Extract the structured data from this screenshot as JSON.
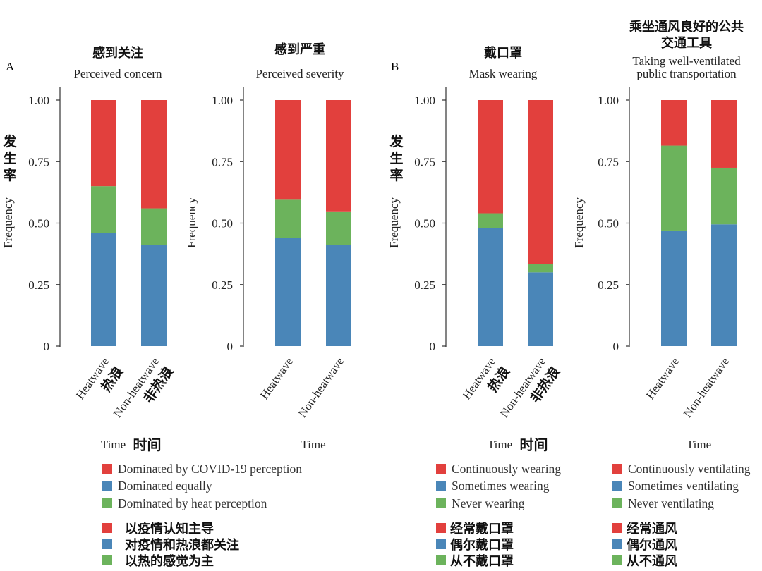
{
  "panel_letters": [
    "A",
    "B"
  ],
  "legends": {
    "A": {
      "en": [
        "Dominated by COVID-19 perception",
        "Dominated equally",
        "Dominated by heat perception"
      ],
      "zh": [
        "以疫情认知主导",
        "对疫情和热浪都关注",
        "以热的感觉为主"
      ]
    },
    "B": {
      "en": [
        "Continuously wearing",
        "Sometimes wearing",
        "Never wearing"
      ],
      "zh": [
        "经常戴口罩",
        "偶尔戴口罩",
        "从不戴口罩"
      ]
    },
    "C": {
      "en": [
        "Continuously ventilating",
        "Sometimes ventilating",
        "Never ventilating"
      ],
      "zh": [
        "经常通风",
        "偶尔通风",
        "从不通风"
      ]
    }
  },
  "chart_data": [
    {
      "type": "bar",
      "stacked": true,
      "title_zh": "感到关注",
      "title": "Perceived concern",
      "categories": [
        "Heatwave",
        "Non-heatwave"
      ],
      "categories_zh": [
        "热浪",
        "非热浪"
      ],
      "xlabel": "Time",
      "xlabel_zh": "时间",
      "ylabel": "Frequency",
      "ylabel_zh": "发生率",
      "ylim": [
        0,
        1
      ],
      "yticks": [
        "0",
        "0.25",
        "0.50",
        "0.75",
        "1.00"
      ],
      "series": [
        {
          "name": "Dominated equally",
          "color": "#4a86b8",
          "values": [
            0.46,
            0.41
          ]
        },
        {
          "name": "Dominated by heat perception",
          "color": "#6cb35c",
          "values": [
            0.19,
            0.15
          ]
        },
        {
          "name": "Dominated by COVID-19 perception",
          "color": "#e2403d",
          "values": [
            0.35,
            0.44
          ]
        }
      ]
    },
    {
      "type": "bar",
      "stacked": true,
      "title_zh": "感到严重",
      "title": "Perceived severity",
      "categories": [
        "Heatwave",
        "Non-heatwave"
      ],
      "categories_zh": [],
      "xlabel": "Time",
      "xlabel_zh": "",
      "ylabel": "Frequency",
      "ylabel_zh": "",
      "ylim": [
        0,
        1
      ],
      "yticks": [
        "0",
        "0.25",
        "0.50",
        "0.75",
        "1.00"
      ],
      "series": [
        {
          "name": "Dominated equally",
          "color": "#4a86b8",
          "values": [
            0.44,
            0.41
          ]
        },
        {
          "name": "Dominated by heat perception",
          "color": "#6cb35c",
          "values": [
            0.155,
            0.135
          ]
        },
        {
          "name": "Dominated by COVID-19 perception",
          "color": "#e2403d",
          "values": [
            0.405,
            0.455
          ]
        }
      ]
    },
    {
      "type": "bar",
      "stacked": true,
      "title_zh": "戴口罩",
      "title": "Mask wearing",
      "categories": [
        "Heatwave",
        "Non-heatwave"
      ],
      "categories_zh": [
        "热浪",
        "非热浪"
      ],
      "xlabel": "Time",
      "xlabel_zh": "时间",
      "ylabel": "Frequency",
      "ylabel_zh": "发生率",
      "ylim": [
        0,
        1
      ],
      "yticks": [
        "0",
        "0.25",
        "0.50",
        "0.75",
        "1.00"
      ],
      "series": [
        {
          "name": "Sometimes wearing",
          "color": "#4a86b8",
          "values": [
            0.48,
            0.3
          ]
        },
        {
          "name": "Never wearing",
          "color": "#6cb35c",
          "values": [
            0.06,
            0.035
          ]
        },
        {
          "name": "Continuously wearing",
          "color": "#e2403d",
          "values": [
            0.46,
            0.665
          ]
        }
      ]
    },
    {
      "type": "bar",
      "stacked": true,
      "title_zh": "乘坐通风良好的公共交通工具",
      "title": "Taking well-ventilated public transportation",
      "categories": [
        "Heatwave",
        "Non-heatwave"
      ],
      "categories_zh": [],
      "xlabel": "Time",
      "xlabel_zh": "",
      "ylabel": "Frequency",
      "ylabel_zh": "",
      "ylim": [
        0,
        1
      ],
      "yticks": [
        "0",
        "0.25",
        "0.50",
        "0.75",
        "1.00"
      ],
      "series": [
        {
          "name": "Sometimes ventilating",
          "color": "#4a86b8",
          "values": [
            0.47,
            0.495
          ]
        },
        {
          "name": "Never ventilating",
          "color": "#6cb35c",
          "values": [
            0.345,
            0.23
          ]
        },
        {
          "name": "Continuously ventilating",
          "color": "#e2403d",
          "values": [
            0.185,
            0.275
          ]
        }
      ]
    }
  ]
}
